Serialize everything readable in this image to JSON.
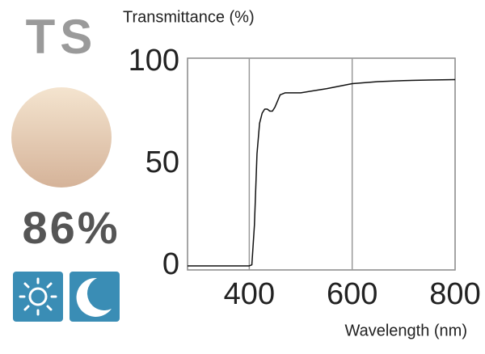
{
  "panel": {
    "code": "TS",
    "value_label": "86%"
  },
  "chart_data": {
    "type": "line",
    "y_label": "Transmittance (%)",
    "x_label": "Wavelength (nm)",
    "x": [
      280,
      400,
      405,
      410,
      415,
      420,
      425,
      430,
      435,
      440,
      445,
      450,
      460,
      470,
      480,
      500,
      550,
      600,
      650,
      700,
      750,
      800
    ],
    "values": [
      0,
      0,
      0.5,
      20,
      55,
      70,
      75,
      77,
      77,
      76,
      76,
      78,
      84,
      85,
      85,
      85,
      87,
      89.5,
      90.5,
      91,
      91.3,
      91.5
    ],
    "color": "#111111",
    "xlim": [
      280,
      800
    ],
    "ylim": [
      -2,
      102
    ],
    "xticks": [
      400,
      600,
      800
    ],
    "yticks": [
      0,
      50,
      100
    ],
    "grid": "x"
  }
}
